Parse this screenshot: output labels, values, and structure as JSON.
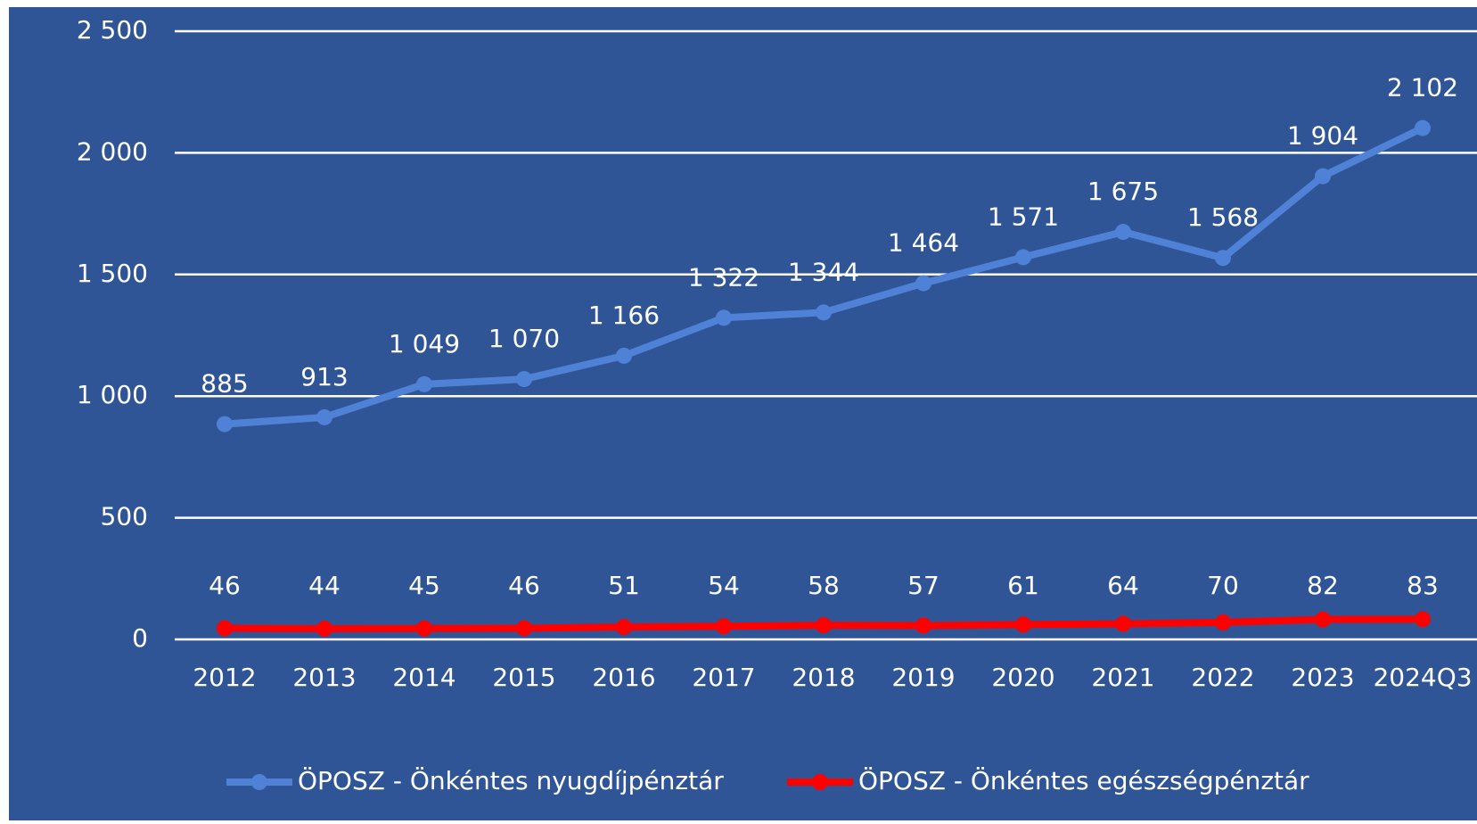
{
  "chart_data": {
    "type": "line",
    "categories": [
      "2012",
      "2013",
      "2014",
      "2015",
      "2016",
      "2017",
      "2018",
      "2019",
      "2020",
      "2021",
      "2022",
      "2023",
      "2024Q3"
    ],
    "series": [
      {
        "name": "ÖPOSZ - Önkéntes nyugdíjpénztár",
        "color": "#4f81d6",
        "values": [
          885,
          913,
          1049,
          1070,
          1166,
          1322,
          1344,
          1464,
          1571,
          1675,
          1568,
          1904,
          2102
        ],
        "value_labels": [
          "885",
          "913",
          "1 049",
          "1 070",
          "1 166",
          "1 322",
          "1 344",
          "1 464",
          "1 571",
          "1 675",
          "1 568",
          "1 904",
          "2 102"
        ]
      },
      {
        "name": "ÖPOSZ - Önkéntes egészségpénztár",
        "color": "#ff0000",
        "values": [
          46,
          44,
          45,
          46,
          51,
          54,
          58,
          57,
          61,
          64,
          70,
          82,
          83
        ]
      }
    ],
    "ylim": [
      0,
      2500
    ],
    "yticks": [
      0,
      500,
      {
        "value": 1000,
        "label": "1 000"
      },
      {
        "value": 1500,
        "label": "1 500"
      },
      {
        "value": 2000,
        "label": "2 000"
      },
      {
        "value": 2500,
        "label": "2 500"
      }
    ],
    "grid": true,
    "legend": "bottom",
    "background": "#2f5597"
  }
}
